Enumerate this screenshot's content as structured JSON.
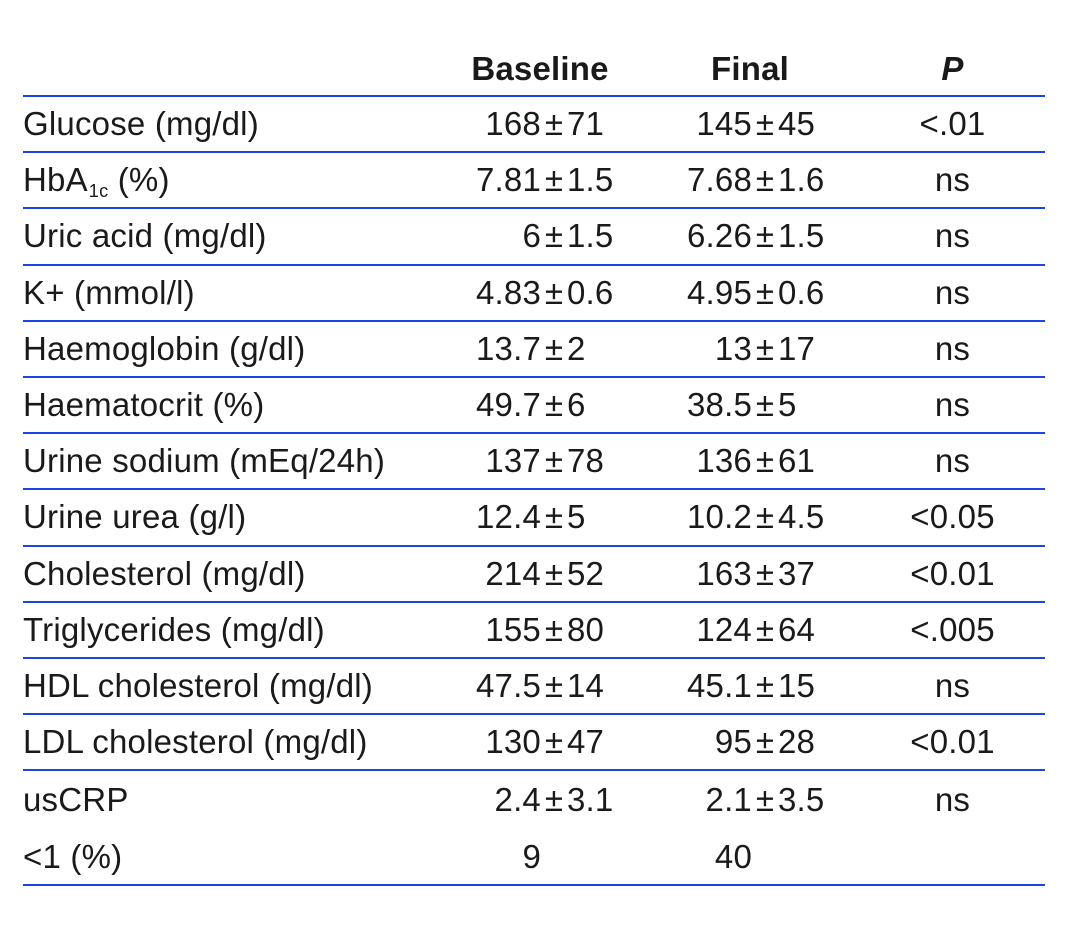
{
  "style": {
    "rule_color": "#1c44e3",
    "text_color": "#1a1a1a",
    "background_color": "#ffffff"
  },
  "chart_data": {
    "type": "table",
    "title": "",
    "plus_minus_symbol": "±",
    "columns": [
      "",
      "Baseline",
      "Final",
      "P"
    ],
    "rows": [
      {
        "label": "Glucose (mg/dl)",
        "baseline": "168±71",
        "final": "145±45",
        "p": "<.01"
      },
      {
        "label": "HbA",
        "label_sub": "1c",
        "label_post": " (%)",
        "baseline": "7.81±1.5",
        "final": "7.68±1.6",
        "p": "ns"
      },
      {
        "label": "Uric acid (mg/dl)",
        "baseline": "6±1.5",
        "final": "6.26±1.5",
        "p": "ns"
      },
      {
        "label": "K+ (mmol/l)",
        "baseline": "4.83±0.6",
        "final": "4.95±0.6",
        "p": "ns"
      },
      {
        "label": "Haemoglobin (g/dl)",
        "baseline": "13.7±2",
        "final": "13±17",
        "p": "ns"
      },
      {
        "label": "Haematocrit (%)",
        "baseline": "49.7±6",
        "final": "38.5±5",
        "p": "ns"
      },
      {
        "label": "Urine sodium (mEq/24h)",
        "baseline": "137±78",
        "final": "136±61",
        "p": "ns"
      },
      {
        "label": "Urine urea (g/l)",
        "baseline": "12.4±5",
        "final": "10.2±4.5",
        "p": "<0.05"
      },
      {
        "label": "Cholesterol (mg/dl)",
        "baseline": "214±52",
        "final": "163±37",
        "p": "<0.01"
      },
      {
        "label": "Triglycerides (mg/dl)",
        "baseline": "155±80",
        "final": "124±64",
        "p": "<.005"
      },
      {
        "label": "HDL cholesterol (mg/dl)",
        "baseline": "47.5±14",
        "final": "45.1±15",
        "p": "ns"
      },
      {
        "label": "LDL cholesterol (mg/dl)",
        "baseline": "130±47",
        "final": "95±28",
        "p": "<0.01"
      },
      {
        "label": "usCRP",
        "baseline": "2.4±3.1",
        "final": "2.1±3.5",
        "p": "ns",
        "no_rule_below": true
      },
      {
        "label": "<1 (%)",
        "baseline": "9",
        "final": "40",
        "p": ""
      }
    ]
  }
}
